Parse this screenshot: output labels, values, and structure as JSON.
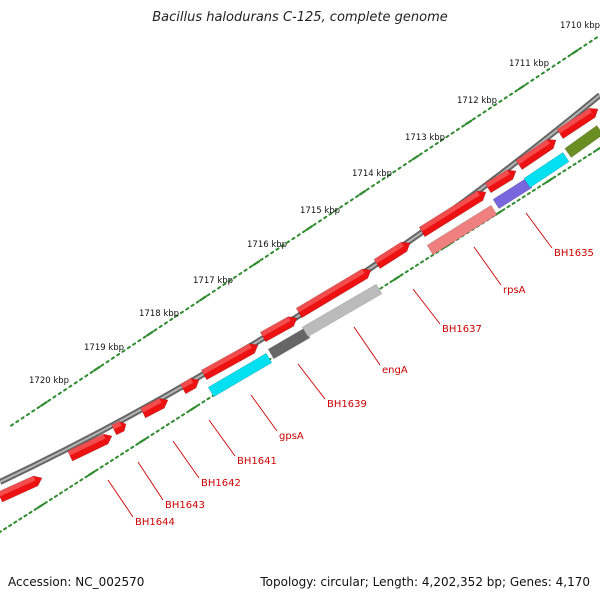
{
  "title": "Bacillus halodurans C-125, complete genome",
  "footer": {
    "accession": "Accession: NC_002570",
    "summary": "Topology: circular; Length: 4,202,352 bp; Genes: 4,170"
  },
  "colors": {
    "backbone": "#8a8a8a",
    "tick_dots": "#2e8b2e",
    "gene_red": "#ee1111",
    "gene_pink": "#f08080",
    "gene_cyan": "#00e0f0",
    "gene_gray": "#bbbbbb",
    "gene_dark": "#666666",
    "gene_purple": "#7766dd",
    "gene_olive": "#6b8e23",
    "label_red": "#cc0000"
  },
  "ruler": [
    {
      "label": "1710 kbp"
    },
    {
      "label": "1711 kbp"
    },
    {
      "label": "1712 kbp"
    },
    {
      "label": "1713 kbp"
    },
    {
      "label": "1714 kbp"
    },
    {
      "label": "1715 kbp"
    },
    {
      "label": "1716 kbp"
    },
    {
      "label": "1717 kbp"
    },
    {
      "label": "1718 kbp"
    },
    {
      "label": "1719 kbp"
    },
    {
      "label": "1720 kbp"
    }
  ],
  "gene_labels": [
    {
      "name": "BH1635"
    },
    {
      "name": "rpsA"
    },
    {
      "name": "BH1637"
    },
    {
      "name": "engA"
    },
    {
      "name": "BH1639"
    },
    {
      "name": "gpsA"
    },
    {
      "name": "BH1641"
    },
    {
      "name": "BH1642"
    },
    {
      "name": "BH1643"
    },
    {
      "name": "BH1644"
    }
  ]
}
